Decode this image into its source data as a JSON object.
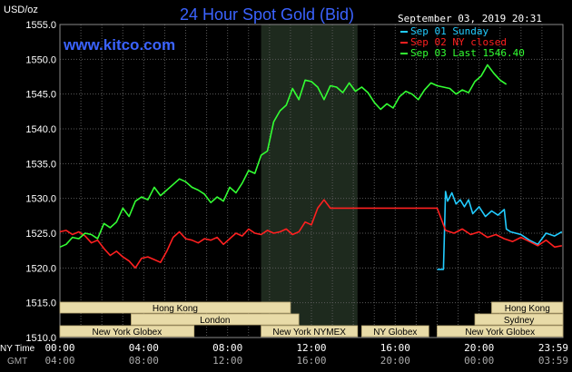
{
  "chart_data": {
    "type": "line",
    "title": "24 Hour Spot Gold (Bid)",
    "ylabel": "USD/oz",
    "ylim": [
      1510,
      1555
    ],
    "yticks": [
      "1555.0",
      "1550.0",
      "1545.0",
      "1540.0",
      "1535.0",
      "1530.0",
      "1525.0",
      "1520.0",
      "1515.0",
      "1510.0"
    ],
    "xlim": [
      0,
      24
    ],
    "xtick_labels": {
      "ny_label": "NY Time",
      "gmt_label": "GMT",
      "ny": [
        "00:00",
        "04:00",
        "08:00",
        "12:00",
        "16:00",
        "20:00",
        "23:59"
      ],
      "gmt": [
        "04:00",
        "08:00",
        "12:00",
        "16:00",
        "20:00",
        "00:00",
        "03:59"
      ]
    },
    "grid": true,
    "datestamp": "September 03, 2019 20:31",
    "source": "www.kitco.com",
    "legend_position": "top-right",
    "series": [
      {
        "name": "Sep 01 Sunday",
        "color": "#22ccff",
        "x": [
          18.0,
          18.3,
          18.34,
          18.4,
          18.5,
          18.7,
          18.9,
          19.1,
          19.3,
          19.5,
          19.7,
          20.0,
          20.3,
          20.6,
          20.9,
          21.2,
          21.3,
          21.5,
          22.0,
          22.4,
          22.8,
          23.2,
          23.6,
          23.95
        ],
        "values": [
          1519.8,
          1519.8,
          1524.0,
          1531.0,
          1529.6,
          1530.8,
          1529.2,
          1529.8,
          1528.8,
          1529.8,
          1527.8,
          1528.8,
          1527.4,
          1528.2,
          1527.6,
          1528.4,
          1525.6,
          1525.2,
          1524.8,
          1524.0,
          1523.4,
          1525.0,
          1524.6,
          1525.2
        ]
      },
      {
        "name": "Sep 02 NY closed",
        "color": "#ff2020",
        "x": [
          0.0,
          0.3,
          0.6,
          0.9,
          1.2,
          1.5,
          1.8,
          2.1,
          2.4,
          2.7,
          3.0,
          3.3,
          3.6,
          3.9,
          4.2,
          4.5,
          4.8,
          5.1,
          5.4,
          5.7,
          6.0,
          6.3,
          6.6,
          6.9,
          7.2,
          7.5,
          7.8,
          8.1,
          8.4,
          8.7,
          9.0,
          9.3,
          9.6,
          9.9,
          10.2,
          10.5,
          10.8,
          11.1,
          11.4,
          11.7,
          12.0,
          12.3,
          12.6,
          12.9,
          13.2,
          13.5,
          14.5,
          15.5,
          16.5,
          17.5,
          18.0,
          18.4,
          18.8,
          19.2,
          19.6,
          20.0,
          20.4,
          20.8,
          21.2,
          21.6,
          22.0,
          22.4,
          22.8,
          23.2,
          23.6,
          23.95
        ],
        "values": [
          1525.2,
          1525.4,
          1524.8,
          1525.2,
          1524.6,
          1523.6,
          1524.0,
          1522.8,
          1521.8,
          1522.4,
          1521.6,
          1521.0,
          1520.0,
          1521.4,
          1521.6,
          1521.2,
          1520.8,
          1522.4,
          1524.4,
          1525.2,
          1524.2,
          1524.0,
          1523.6,
          1524.2,
          1524.0,
          1524.4,
          1523.4,
          1524.2,
          1525.0,
          1524.6,
          1525.6,
          1525.0,
          1524.8,
          1525.4,
          1525.0,
          1525.2,
          1525.6,
          1524.8,
          1525.2,
          1526.6,
          1526.2,
          1528.6,
          1529.8,
          1528.6,
          1528.6,
          1528.6,
          1528.6,
          1528.6,
          1528.6,
          1528.6,
          1528.6,
          1525.4,
          1525.0,
          1525.6,
          1524.8,
          1525.2,
          1524.4,
          1524.8,
          1524.2,
          1523.8,
          1524.4,
          1523.8,
          1523.2,
          1524.0,
          1523.0,
          1523.2
        ]
      },
      {
        "name": "Sep 03 Last 1546.40",
        "color": "#33ff33",
        "x": [
          0.0,
          0.3,
          0.6,
          0.9,
          1.2,
          1.5,
          1.8,
          2.1,
          2.4,
          2.7,
          3.0,
          3.3,
          3.6,
          3.9,
          4.2,
          4.5,
          4.8,
          5.1,
          5.4,
          5.7,
          6.0,
          6.3,
          6.6,
          6.9,
          7.2,
          7.5,
          7.8,
          8.1,
          8.4,
          8.7,
          9.0,
          9.3,
          9.6,
          9.9,
          10.2,
          10.5,
          10.8,
          11.1,
          11.4,
          11.7,
          12.0,
          12.3,
          12.6,
          12.9,
          13.2,
          13.5,
          13.8,
          14.1,
          14.4,
          14.7,
          15.0,
          15.3,
          15.6,
          15.9,
          16.2,
          16.5,
          16.8,
          17.1,
          17.4,
          17.7,
          18.0,
          18.3,
          18.6,
          18.9,
          19.2,
          19.5,
          19.8,
          20.1,
          20.4,
          20.7,
          21.0,
          21.3
        ],
        "values": [
          1523.0,
          1523.4,
          1524.4,
          1524.2,
          1525.0,
          1524.8,
          1524.2,
          1526.4,
          1525.8,
          1526.6,
          1528.6,
          1527.4,
          1529.6,
          1530.2,
          1529.8,
          1531.6,
          1530.4,
          1531.2,
          1532.0,
          1532.8,
          1532.4,
          1531.6,
          1531.2,
          1530.6,
          1529.4,
          1530.2,
          1529.6,
          1531.6,
          1530.8,
          1532.2,
          1534.0,
          1533.6,
          1536.2,
          1536.8,
          1541.0,
          1542.6,
          1543.4,
          1545.8,
          1544.2,
          1547.0,
          1546.8,
          1546.0,
          1544.2,
          1546.2,
          1546.0,
          1545.2,
          1546.6,
          1545.4,
          1546.0,
          1545.2,
          1543.8,
          1542.8,
          1543.6,
          1543.0,
          1544.6,
          1545.4,
          1545.0,
          1544.2,
          1545.6,
          1546.6,
          1546.2,
          1546.0,
          1545.8,
          1545.0,
          1545.6,
          1545.2,
          1546.8,
          1547.6,
          1549.2,
          1548.0,
          1547.0,
          1546.4
        ]
      }
    ],
    "sessions": [
      {
        "label": "Hong Kong",
        "start": 0,
        "end": 11,
        "row": 0
      },
      {
        "label": "Hong Kong",
        "start": 20.6,
        "end": 24,
        "row": 0
      },
      {
        "label": "London",
        "start": 3.4,
        "end": 11.4,
        "row": 1
      },
      {
        "label": "Sydney",
        "start": 19.8,
        "end": 24,
        "row": 1
      },
      {
        "label": "New York Globex",
        "start": 0,
        "end": 6.4,
        "row": 2
      },
      {
        "label": "New York NYMEX",
        "start": 9.6,
        "end": 14.2,
        "row": 2
      },
      {
        "label": "NY Globex",
        "start": 14.4,
        "end": 17.6,
        "row": 2
      },
      {
        "label": "New York Globex",
        "start": 18.0,
        "end": 24,
        "row": 2
      }
    ]
  },
  "colors": {
    "background": "#000000",
    "grid": "#595959",
    "title": "#3b63ff",
    "source": "#3b63ff",
    "axis_text": "#ffffff",
    "nymex_shade": "#1e2a1e",
    "session_box": "#e8dba8",
    "session_text": "#000000"
  }
}
